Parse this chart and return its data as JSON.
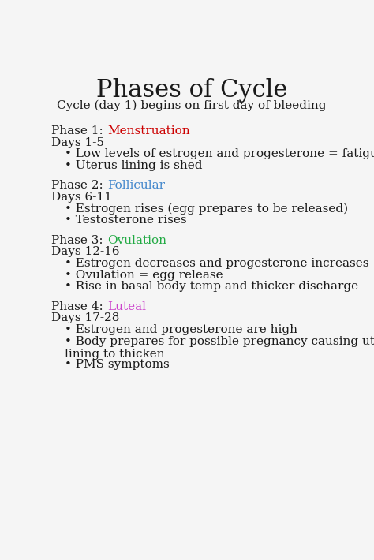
{
  "title": "Phases of Cycle",
  "subtitle": "Cycle (day 1) begins on first day of bleeding",
  "background_color": "#f5f5f5",
  "title_color": "#1a1a1a",
  "title_fontsize": 22,
  "subtitle_fontsize": 11,
  "body_fontsize": 11,
  "phases": [
    {
      "label_prefix": "Phase 1: ",
      "label_name": "Menstruation",
      "label_color": "#cc0000",
      "days": "Days 1-5",
      "bullets": [
        "Low levels of estrogen and progesterone = fatigue",
        "Uterus lining is shed"
      ]
    },
    {
      "label_prefix": "Phase 2: ",
      "label_name": "Follicular",
      "label_color": "#4488cc",
      "days": "Days 6-11",
      "bullets": [
        "Estrogen rises (egg prepares to be released)",
        "Testosterone rises"
      ]
    },
    {
      "label_prefix": "Phase 3: ",
      "label_name": "Ovulation",
      "label_color": "#22aa44",
      "days": "Days 12-16",
      "bullets": [
        "Estrogen decreases and progesterone increases",
        "Ovulation = egg release",
        "Rise in basal body temp and thicker discharge"
      ]
    },
    {
      "label_prefix": "Phase 4: ",
      "label_name": "Luteal",
      "label_color": "#cc44cc",
      "days": "Days 17-28",
      "bullets": [
        "Estrogen and progesterone are high",
        "Body prepares for possible pregnancy causing uterus\nlining to thicken",
        "PMS symptoms"
      ]
    }
  ]
}
